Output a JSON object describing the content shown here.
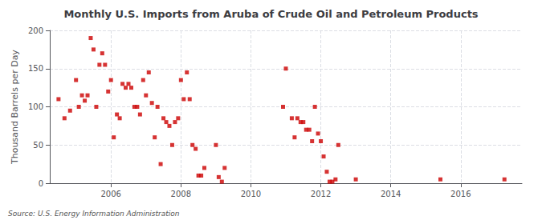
{
  "chart_data": {
    "type": "scatter",
    "title": "Monthly U.S. Imports from Aruba of Crude Oil and Petroleum Products",
    "ylabel": "Thousand Barrels per Day",
    "annotations": [
      "Source: U.S. Energy Information Administration"
    ],
    "color": "#cc0000",
    "marker": "square",
    "grid": true,
    "xlim": [
      2004.25,
      2017.75
    ],
    "xticks": [
      2006,
      2008,
      2010,
      2012,
      2014,
      2016
    ],
    "ylim": [
      0,
      200
    ],
    "yticks": [
      0,
      50,
      100,
      150,
      200
    ],
    "x": [
      2004.5,
      2004.67,
      2004.83,
      2005.0,
      2005.08,
      2005.17,
      2005.25,
      2005.33,
      2005.42,
      2005.5,
      2005.58,
      2005.67,
      2005.75,
      2005.83,
      2005.92,
      2006.0,
      2006.08,
      2006.17,
      2006.25,
      2006.33,
      2006.42,
      2006.5,
      2006.58,
      2006.67,
      2006.75,
      2006.83,
      2006.92,
      2007.0,
      2007.08,
      2007.17,
      2007.25,
      2007.33,
      2007.42,
      2007.5,
      2007.58,
      2007.67,
      2007.75,
      2007.83,
      2007.92,
      2008.0,
      2008.08,
      2008.17,
      2008.25,
      2008.33,
      2008.42,
      2008.5,
      2008.58,
      2008.67,
      2009.0,
      2009.08,
      2009.17,
      2009.25,
      2010.92,
      2011.0,
      2011.17,
      2011.25,
      2011.33,
      2011.42,
      2011.5,
      2011.58,
      2011.67,
      2011.75,
      2011.83,
      2011.92,
      2012.0,
      2012.08,
      2012.17,
      2012.25,
      2012.33,
      2012.42,
      2012.5,
      2013.0,
      2015.42,
      2017.25
    ],
    "values": [
      110,
      85,
      95,
      135,
      100,
      115,
      108,
      115,
      190,
      175,
      100,
      155,
      170,
      155,
      120,
      135,
      60,
      90,
      85,
      130,
      125,
      130,
      125,
      100,
      100,
      90,
      135,
      115,
      145,
      105,
      60,
      100,
      25,
      85,
      80,
      75,
      50,
      80,
      85,
      135,
      110,
      145,
      110,
      50,
      45,
      10,
      10,
      20,
      50,
      8,
      2,
      20,
      100,
      150,
      85,
      60,
      85,
      80,
      80,
      70,
      70,
      55,
      100,
      65,
      55,
      35,
      15,
      2,
      2,
      5,
      50,
      5,
      5,
      5
    ]
  }
}
